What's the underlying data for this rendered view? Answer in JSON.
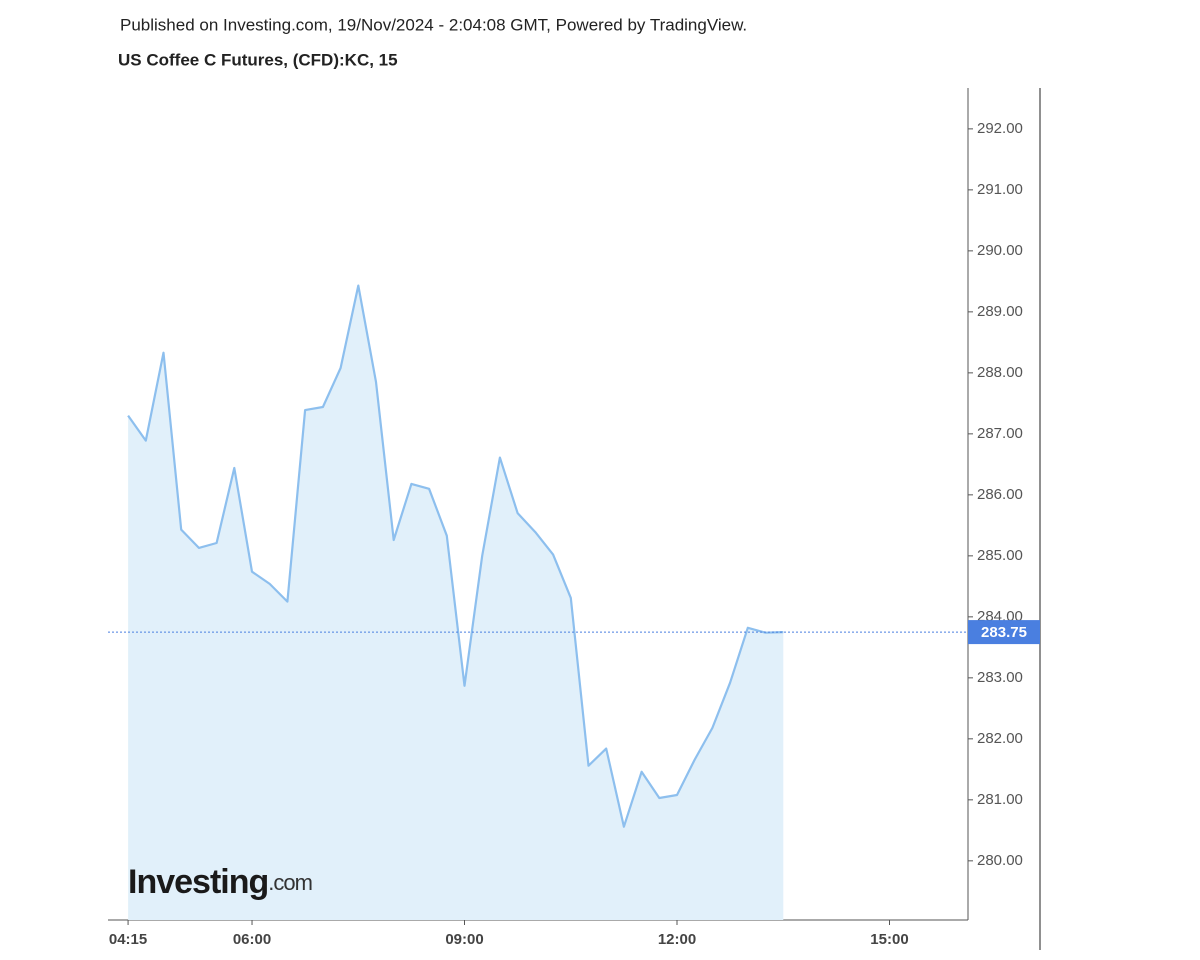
{
  "header": "Published on Investing.com, 19/Nov/2024 - 2:04:08 GMT, Powered by TradingView.",
  "chart_data": {
    "type": "area",
    "title": "US Coffee C Futures, (CFD):KC, 15",
    "x": [
      255,
      270,
      285,
      300,
      315,
      330,
      345,
      360,
      375,
      390,
      405,
      420,
      435,
      450,
      465,
      480,
      495,
      510,
      525,
      540,
      555,
      570,
      585,
      600,
      615,
      630,
      645,
      660,
      675,
      690,
      705,
      720,
      735,
      750,
      765,
      780,
      795,
      810
    ],
    "values": [
      287.3,
      286.89,
      288.33,
      285.43,
      285.13,
      285.21,
      286.44,
      284.74,
      284.54,
      284.25,
      287.39,
      287.44,
      288.08,
      289.43,
      287.85,
      285.26,
      286.18,
      286.1,
      285.33,
      282.87,
      285.0,
      286.61,
      285.7,
      285.39,
      285.02,
      284.31,
      281.56,
      281.84,
      280.56,
      281.46,
      281.03,
      281.08,
      281.66,
      282.18,
      282.92,
      283.82,
      283.74,
      283.75
    ],
    "color": "#8dbfee",
    "fill_color": "#e1f0fa",
    "xlim": [
      238,
      966.5
    ],
    "xticks": [
      {
        "value": 255,
        "label": "04:15"
      },
      {
        "value": 360,
        "label": "06:00"
      },
      {
        "value": 540,
        "label": "09:00"
      },
      {
        "value": 720,
        "label": "12:00"
      },
      {
        "value": 900,
        "label": "15:00"
      }
    ],
    "ylim": [
      279.03,
      292.67
    ],
    "yticks": [
      {
        "value": 280,
        "label": "280.00"
      },
      {
        "value": 281,
        "label": "281.00"
      },
      {
        "value": 282,
        "label": "282.00"
      },
      {
        "value": 283,
        "label": "283.00"
      },
      {
        "value": 284,
        "label": "284.00"
      },
      {
        "value": 285,
        "label": "285.00"
      },
      {
        "value": 286,
        "label": "286.00"
      },
      {
        "value": 287,
        "label": "287.00"
      },
      {
        "value": 288,
        "label": "288.00"
      },
      {
        "value": 289,
        "label": "289.00"
      },
      {
        "value": 290,
        "label": "290.00"
      },
      {
        "value": 291,
        "label": "291.00"
      },
      {
        "value": 292,
        "label": "292.00"
      }
    ],
    "last_price": {
      "value": 283.75,
      "label": "283.75"
    },
    "last_price_color": "#4a7fe0",
    "watermark": {
      "brand": "Investing",
      "suffix": ".com"
    }
  }
}
